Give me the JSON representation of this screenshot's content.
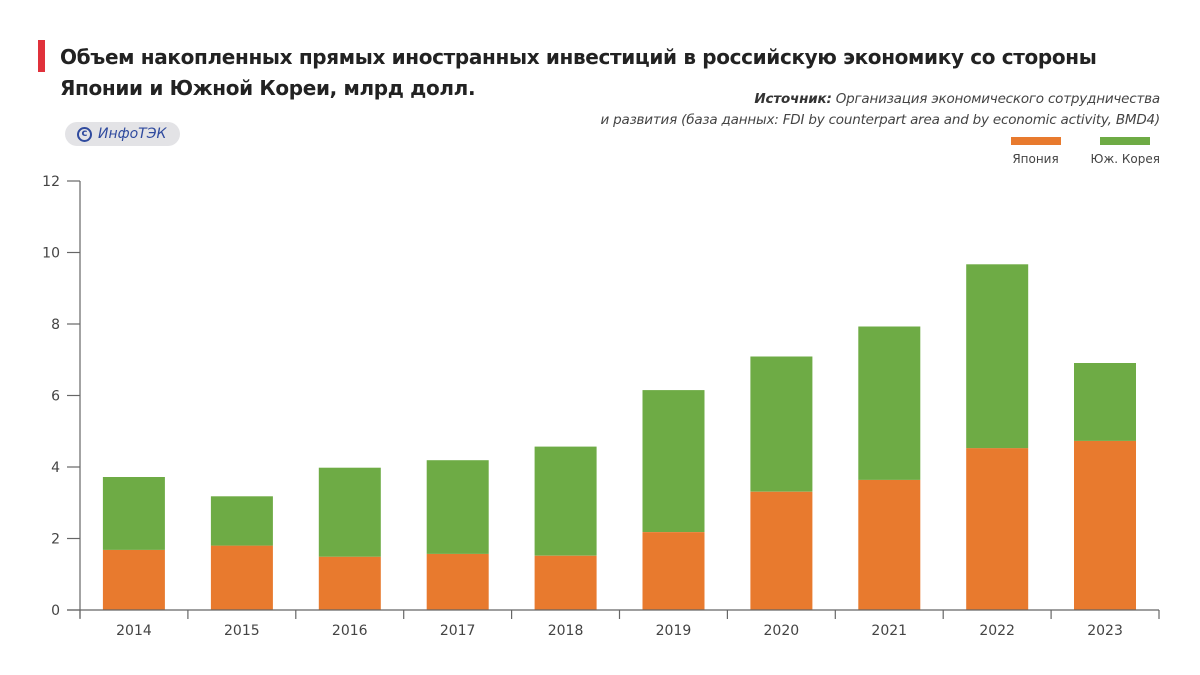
{
  "header": {
    "title": "Объем накопленных прямых иностранных инвестиций в российскую экономику со стороны Японии и Южной Кореи, млрд долл.",
    "source_label": "Источник:",
    "source_line1": "Организация экономического сотрудничества",
    "source_line2": "и развития (база данных: FDI by counterpart area and by economic activity, BMD4)",
    "badge_icon": "copyright-icon",
    "badge_text": "ИнфоТЭК"
  },
  "colors": {
    "accent": "#e0313b",
    "japan": "#e87a2e",
    "korea": "#6eab45",
    "axis": "#666666"
  },
  "chart_data": {
    "type": "bar",
    "stacked": true,
    "title": "Объем накопленных прямых иностранных инвестиций в российскую экономику со стороны Японии и Южной Кореи, млрд долл.",
    "xlabel": "",
    "ylabel": "",
    "ylim": [
      0,
      12
    ],
    "yticks": [
      "0",
      "2",
      "4",
      "6",
      "8",
      "10",
      "12"
    ],
    "grid": false,
    "legend_position": "top-right",
    "categories": [
      "2014",
      "2015",
      "2016",
      "2017",
      "2018",
      "2019",
      "2020",
      "2021",
      "2022",
      "2023"
    ],
    "series": [
      {
        "name": "Япония",
        "color": "#e87a2e",
        "values": [
          1.68,
          1.8,
          1.49,
          1.57,
          1.52,
          2.18,
          3.31,
          3.64,
          4.53,
          4.73
        ]
      },
      {
        "name": "Юж. Корея",
        "color": "#6eab45",
        "values": [
          2.04,
          1.38,
          2.49,
          2.62,
          3.05,
          3.97,
          3.78,
          4.29,
          5.14,
          2.18
        ]
      }
    ]
  }
}
